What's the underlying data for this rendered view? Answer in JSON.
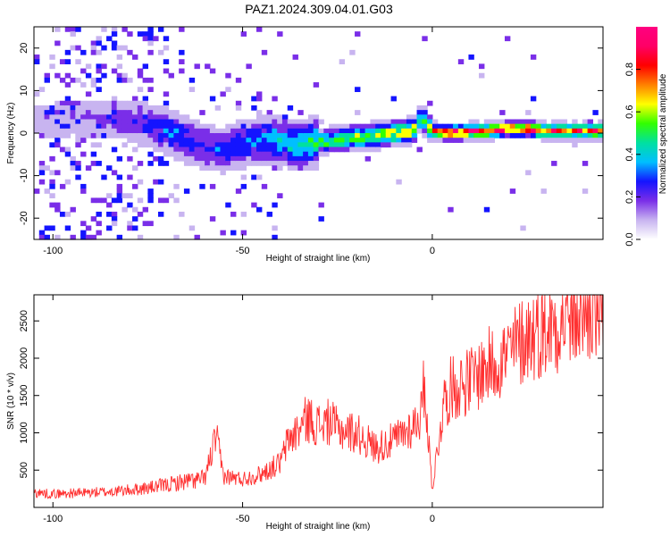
{
  "figure_title": "PAZ1.2024.309.04.01.G03",
  "chart_data": [
    {
      "type": "heatmap",
      "title": "",
      "xlabel": "Height of straight line (km)",
      "ylabel": "Frequency (Hz)",
      "xlim": [
        -105,
        45
      ],
      "ylim": [
        -25,
        25
      ],
      "xticks": [
        -100,
        -50,
        0
      ],
      "yticks": [
        -20,
        -10,
        0,
        10,
        20
      ],
      "colorbar": {
        "label": "Normalized spectral amplitude",
        "range": [
          0.0,
          1.0
        ],
        "ticks": [
          0.0,
          0.2,
          0.4,
          0.6,
          0.8
        ],
        "colors": [
          "#ffffff",
          "#c8b4f0",
          "#7a2ee8",
          "#1414ff",
          "#00bfff",
          "#00e0a0",
          "#32ff00",
          "#ffff00",
          "#ff8000",
          "#ff0000",
          "#ff0066",
          "#ff0080"
        ]
      },
      "ridge": {
        "x": [
          -105,
          -90,
          -80,
          -75,
          -70,
          -65,
          -60,
          -55,
          -50,
          -45,
          -40,
          -35,
          -30,
          -25,
          -20,
          -15,
          -10,
          -5,
          -3,
          0,
          5,
          10,
          15,
          20,
          25,
          30,
          35,
          40,
          45
        ],
        "frequency": [
          3,
          3.5,
          3,
          2,
          0.5,
          -1.5,
          -3,
          -4,
          -2.5,
          -1.5,
          -2,
          -3,
          -2,
          -1.5,
          -1,
          -0.5,
          0,
          0.5,
          4,
          0.5,
          0,
          0.5,
          0.5,
          1,
          1,
          0.5,
          0.5,
          0.5,
          0.5
        ],
        "amplitude": [
          0.12,
          0.15,
          0.2,
          0.25,
          0.3,
          0.3,
          0.25,
          0.3,
          0.3,
          0.35,
          0.4,
          0.45,
          0.5,
          0.55,
          0.6,
          0.6,
          0.65,
          0.65,
          0.5,
          0.7,
          0.95,
          0.9,
          0.9,
          0.85,
          0.85,
          0.8,
          0.85,
          0.85,
          0.85
        ]
      }
    },
    {
      "type": "line",
      "title": "",
      "xlabel": "Height of straight line (km)",
      "ylabel": "SNR (10 * v/v)",
      "xlim": [
        -105,
        45
      ],
      "ylim": [
        0,
        2850
      ],
      "xticks": [
        -100,
        -50,
        0
      ],
      "yticks": [
        500,
        1000,
        1500,
        2000,
        2500
      ],
      "series": [
        {
          "color": "#ff3030",
          "x": [
            -105,
            -100,
            -95,
            -90,
            -85,
            -80,
            -75,
            -70,
            -65,
            -60,
            -57,
            -55,
            -50,
            -45,
            -40,
            -38,
            -35,
            -33,
            -30,
            -27,
            -25,
            -20,
            -15,
            -10,
            -5,
            -3,
            -2,
            -1,
            0,
            3,
            5,
            10,
            15,
            20,
            25,
            30,
            35,
            40,
            45
          ],
          "values": [
            200,
            180,
            190,
            200,
            210,
            230,
            260,
            300,
            350,
            380,
            950,
            420,
            380,
            450,
            600,
            900,
            1050,
            1200,
            1100,
            1150,
            1050,
            1000,
            800,
            900,
            1100,
            1250,
            1700,
            900,
            250,
            1400,
            1600,
            1700,
            1900,
            2050,
            2300,
            2400,
            2550,
            2600,
            2650
          ]
        }
      ]
    }
  ]
}
